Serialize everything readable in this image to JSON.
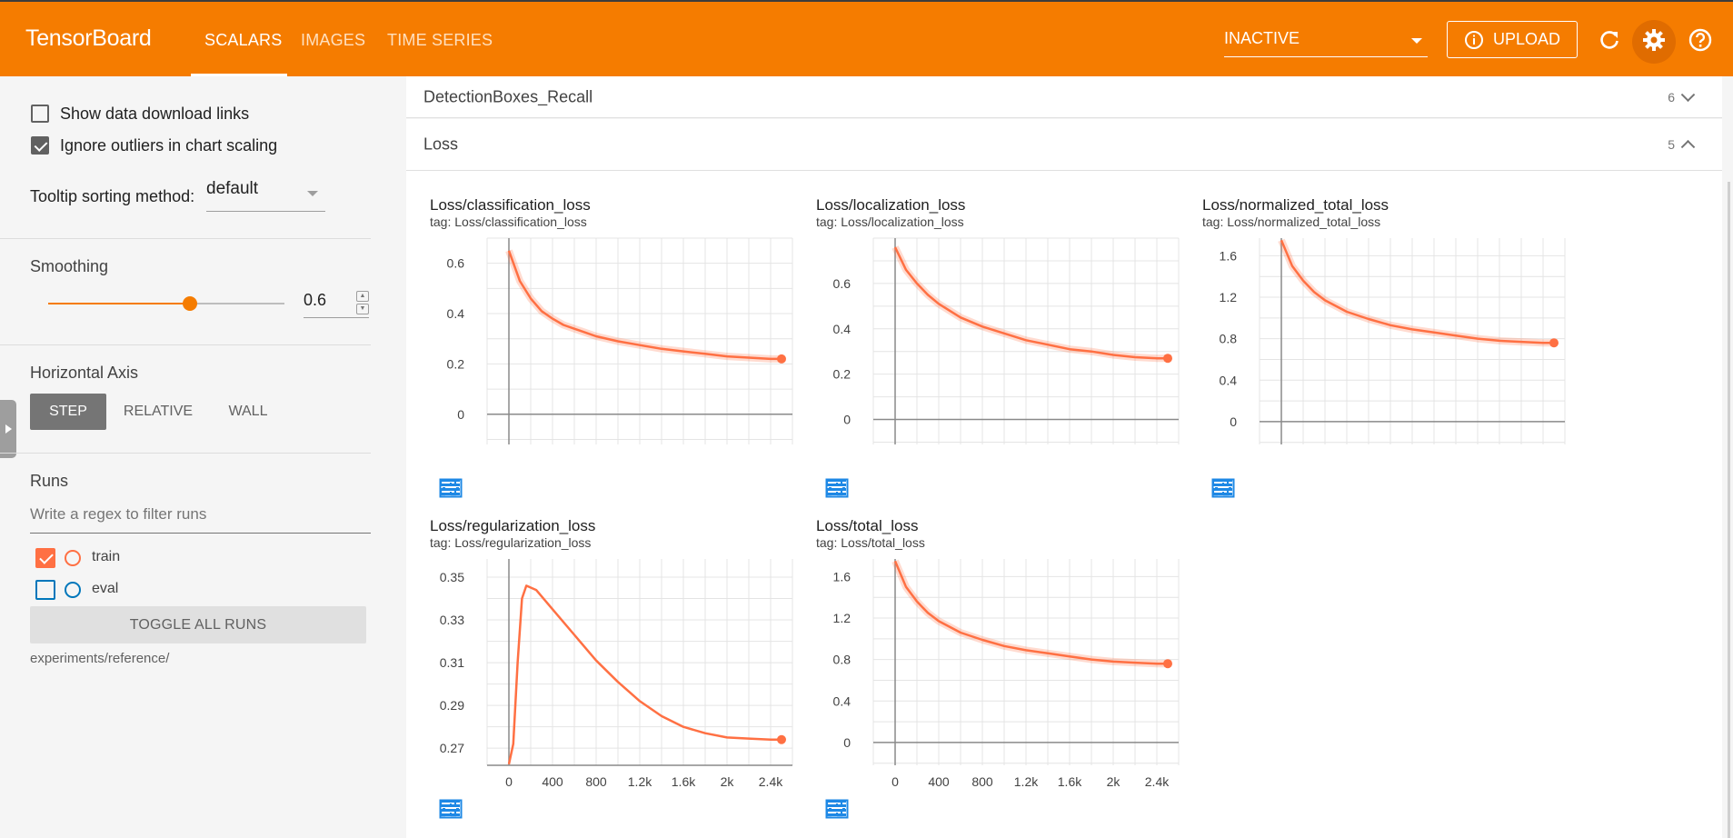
{
  "header": {
    "brand": "TensorBoard",
    "tabs": [
      {
        "label": "SCALARS",
        "active": true
      },
      {
        "label": "IMAGES",
        "active": false
      },
      {
        "label": "TIME SERIES",
        "active": false
      }
    ],
    "run_status": "INACTIVE",
    "upload_label": "UPLOAD",
    "icons": [
      "refresh-icon",
      "settings-icon",
      "help-icon"
    ],
    "accent_color": "#f57c00"
  },
  "sidebar": {
    "show_download_links": {
      "label": "Show data download links",
      "checked": false
    },
    "ignore_outliers": {
      "label": "Ignore outliers in chart scaling",
      "checked": true
    },
    "tooltip_sorting": {
      "label": "Tooltip sorting method:",
      "value": "default"
    },
    "smoothing": {
      "label": "Smoothing",
      "value": "0.6",
      "fraction": 0.6
    },
    "horizontal_axis": {
      "label": "Horizontal Axis",
      "options": [
        "STEP",
        "RELATIVE",
        "WALL"
      ],
      "selected": "STEP"
    },
    "runs": {
      "label": "Runs",
      "filter_placeholder": "Write a regex to filter runs",
      "items": [
        {
          "name": "train",
          "checked": true,
          "color": "#ff7043"
        },
        {
          "name": "eval",
          "checked": false,
          "color": "#0077bb"
        }
      ],
      "toggle_label": "TOGGLE ALL RUNS",
      "path": "experiments/reference/"
    }
  },
  "main": {
    "categories": [
      {
        "name": "DetectionBoxes_Recall",
        "count": "6",
        "expanded": false
      },
      {
        "name": "Loss",
        "count": "5",
        "expanded": true
      }
    ]
  },
  "chart_data": [
    {
      "type": "line",
      "title": "Loss/classification_loss",
      "tag": "tag: Loss/classification_loss",
      "yticks": [
        "0",
        "0.2",
        "0.4",
        "0.6"
      ],
      "xticks": [],
      "x": [
        0,
        100,
        200,
        300,
        400,
        500,
        600,
        700,
        800,
        1000,
        1200,
        1400,
        1600,
        1800,
        2000,
        2200,
        2400,
        2500
      ],
      "y": [
        0.65,
        0.53,
        0.46,
        0.41,
        0.38,
        0.355,
        0.34,
        0.325,
        0.31,
        0.29,
        0.275,
        0.26,
        0.25,
        0.24,
        0.23,
        0.225,
        0.22,
        0.22
      ],
      "xlim": [
        -200,
        2600
      ],
      "ylim": [
        -0.12,
        0.7
      ],
      "series": [
        {
          "name": "train",
          "color": "#ff7043"
        }
      ]
    },
    {
      "type": "line",
      "title": "Loss/localization_loss",
      "tag": "tag: Loss/localization_loss",
      "yticks": [
        "0",
        "0.2",
        "0.4",
        "0.6"
      ],
      "xticks": [],
      "x": [
        0,
        100,
        200,
        300,
        400,
        500,
        600,
        800,
        1000,
        1200,
        1400,
        1600,
        1800,
        2000,
        2200,
        2400,
        2500
      ],
      "y": [
        0.76,
        0.66,
        0.6,
        0.55,
        0.51,
        0.48,
        0.45,
        0.41,
        0.38,
        0.35,
        0.33,
        0.31,
        0.3,
        0.285,
        0.275,
        0.27,
        0.27
      ],
      "xlim": [
        -200,
        2600
      ],
      "ylim": [
        -0.11,
        0.8
      ],
      "series": [
        {
          "name": "train",
          "color": "#ff7043"
        }
      ]
    },
    {
      "type": "line",
      "title": "Loss/normalized_total_loss",
      "tag": "tag: Loss/normalized_total_loss",
      "yticks": [
        "0",
        "0.4",
        "0.8",
        "1.2",
        "1.6"
      ],
      "xticks": [],
      "x": [
        0,
        100,
        200,
        300,
        400,
        600,
        800,
        1000,
        1200,
        1400,
        1600,
        1800,
        2000,
        2200,
        2400,
        2500
      ],
      "y": [
        1.75,
        1.5,
        1.36,
        1.25,
        1.17,
        1.06,
        0.99,
        0.93,
        0.89,
        0.86,
        0.83,
        0.8,
        0.78,
        0.77,
        0.76,
        0.76
      ],
      "xlim": [
        -200,
        2600
      ],
      "ylim": [
        -0.22,
        1.77
      ],
      "series": [
        {
          "name": "train",
          "color": "#ff7043"
        }
      ]
    },
    {
      "type": "line",
      "title": "Loss/regularization_loss",
      "tag": "tag: Loss/regularization_loss",
      "yticks": [
        "0.27",
        "0.29",
        "0.31",
        "0.33",
        "0.35"
      ],
      "xticks": [
        "0",
        "400",
        "800",
        "1.2k",
        "1.6k",
        "2k",
        "2.4k"
      ],
      "x": [
        0,
        40,
        80,
        120,
        160,
        250,
        400,
        600,
        800,
        1000,
        1200,
        1400,
        1600,
        1800,
        2000,
        2200,
        2400,
        2500
      ],
      "y": [
        0.2625,
        0.272,
        0.31,
        0.34,
        0.346,
        0.344,
        0.335,
        0.323,
        0.311,
        0.301,
        0.292,
        0.285,
        0.28,
        0.277,
        0.275,
        0.2745,
        0.274,
        0.274
      ],
      "xlim": [
        -200,
        2600
      ],
      "ylim": [
        0.262,
        0.3585
      ],
      "series": [
        {
          "name": "train",
          "color": "#ff7043"
        }
      ]
    },
    {
      "type": "line",
      "title": "Loss/total_loss",
      "tag": "tag: Loss/total_loss",
      "yticks": [
        "0",
        "0.4",
        "0.8",
        "1.2",
        "1.6"
      ],
      "xticks": [
        "0",
        "400",
        "800",
        "1.2k",
        "1.6k",
        "2k",
        "2.4k"
      ],
      "x": [
        0,
        100,
        200,
        300,
        400,
        600,
        800,
        1000,
        1200,
        1400,
        1600,
        1800,
        2000,
        2200,
        2400,
        2500
      ],
      "y": [
        1.75,
        1.5,
        1.36,
        1.25,
        1.17,
        1.06,
        0.99,
        0.93,
        0.89,
        0.86,
        0.83,
        0.8,
        0.78,
        0.77,
        0.76,
        0.76
      ],
      "xlim": [
        -200,
        2600
      ],
      "ylim": [
        -0.22,
        1.77
      ],
      "series": [
        {
          "name": "train",
          "color": "#ff7043"
        }
      ]
    }
  ]
}
